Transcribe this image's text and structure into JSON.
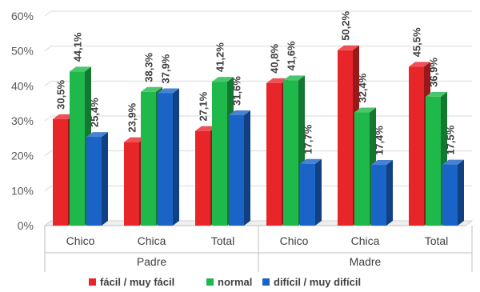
{
  "chart_data": {
    "type": "bar",
    "style": "3d-clustered-column",
    "y_unit": "%",
    "ylim": [
      0,
      60
    ],
    "ytick_step": 10,
    "grid": true,
    "legend_position": "bottom",
    "categories": [
      "Chico",
      "Chica",
      "Total",
      "Chico",
      "Chica",
      "Total"
    ],
    "groups": [
      {
        "label": "Padre",
        "span": [
          0,
          2
        ]
      },
      {
        "label": "Madre",
        "span": [
          3,
          5
        ]
      }
    ],
    "series": [
      {
        "name": "fácil / muy fácil",
        "color": "#e8262a",
        "values": [
          30.5,
          23.9,
          27.1,
          40.8,
          50.2,
          45.5
        ],
        "labels": [
          "30,5%",
          "23,9%",
          "27,1%",
          "40,8%",
          "50,2%",
          "45,5%"
        ]
      },
      {
        "name": "normal",
        "color": "#1fb84a",
        "values": [
          44.1,
          38.3,
          41.2,
          41.6,
          32.4,
          36.9
        ],
        "labels": [
          "44,1%",
          "38,3%",
          "41,2%",
          "41,6%",
          "32,4%",
          "36,9%"
        ]
      },
      {
        "name": "difícil / muy difícil",
        "color": "#1a64c8",
        "values": [
          25.4,
          37.9,
          31.6,
          17.7,
          17.4,
          17.5
        ],
        "labels": [
          "25,4%",
          "37,9%",
          "31,6%",
          "17,7%",
          "17,4%",
          "17,5%"
        ]
      }
    ]
  }
}
